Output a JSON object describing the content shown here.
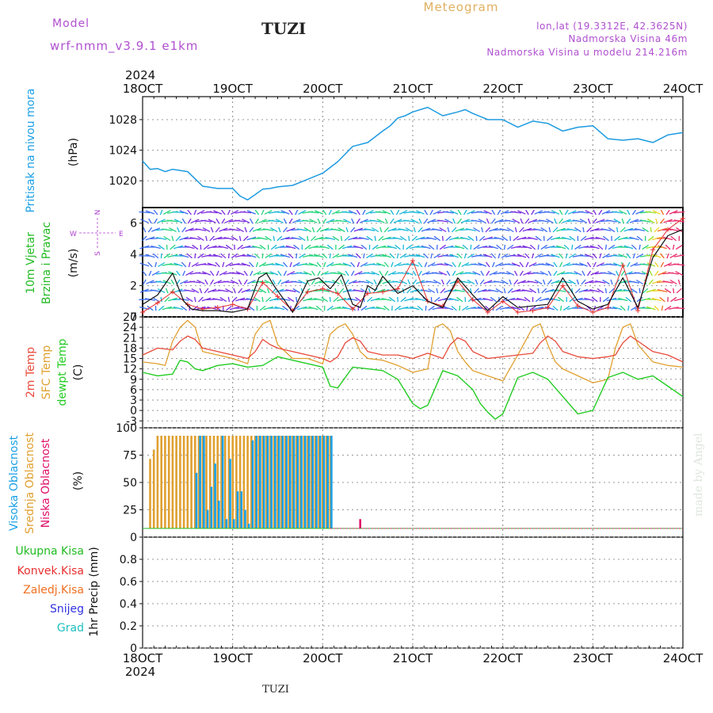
{
  "header": {
    "meteogram_label": "Meteogram",
    "model_label": "Model",
    "model_name": "wrf-nmm_v3.9.1 e1km",
    "station": "TUZI",
    "lonlat": "lon,lat (19.3312E, 42.3625N)",
    "elevation": "Nadmorska Visina 46m",
    "model_elevation": "Nadmorska Visina u modelu 214.216m",
    "year_top": "2024",
    "year_bottom": "2024",
    "footer_station": "TUZI",
    "watermark": "made by Angel"
  },
  "colors": {
    "pressure": "#1e9be0",
    "temp2m": "#e84a3a",
    "sfctemp": "#e0a030",
    "dewpt": "#22cc22",
    "cloud_high": "#1aa0e6",
    "cloud_mid": "#e0a030",
    "cloud_low": "#e0106a",
    "wind_label": "#22bb22",
    "wind_dir": "#b040d0",
    "precip_total": "#22bb22",
    "precip_conv": "#e83030",
    "precip_frozen": "#f07020",
    "precip_snow": "#3030e0",
    "precip_grad": "#20c0c0",
    "header_purple": "#b050d0",
    "header_gold": "#e0b060"
  },
  "x_ticks": [
    "18OCT",
    "19OCT",
    "20OCT",
    "21OCT",
    "22OCT",
    "23OCT",
    "24OCT"
  ],
  "panels": {
    "pressure": {
      "label_main": "Pritisak na nivou mora",
      "unit": "(hPa)",
      "yticks": [
        "1020",
        "1024",
        "1028"
      ]
    },
    "wind": {
      "label_main": "10m Vjetar",
      "label_sub": "Brzina i Pravac",
      "unit": "(m/s)",
      "compass_n": "N",
      "compass_w": "W",
      "compass_e": "E",
      "compass_s": "S",
      "yticks": [
        "0",
        "2",
        "4",
        "6"
      ]
    },
    "temp": {
      "label_a": "2m Temp",
      "label_b": "SFC Temp",
      "label_c": "dewpt Temp",
      "unit": "(C)",
      "yticks": [
        "-3",
        "0",
        "3",
        "6",
        "9",
        "12",
        "15",
        "18",
        "21",
        "24",
        "27"
      ]
    },
    "cloud": {
      "label_a": "Visoka Oblacnost",
      "label_b": "Srednja Oblacnost",
      "label_c": "Niska Oblacnost",
      "unit": "(%)",
      "yticks": [
        "0",
        "25",
        "50",
        "75",
        "100"
      ]
    },
    "precip": {
      "label_total": "Ukupna Kisa",
      "label_conv": "Konvek.Kisa",
      "label_frozen": "Zaledj.Kisa",
      "label_snow": "Snijeg",
      "label_grad": "Grad",
      "label_axis": "1hr Precip (mm)",
      "yticks": [
        "0",
        "0.2",
        "0.4",
        "0.6",
        "0.8"
      ]
    }
  },
  "chart_data": [
    {
      "type": "line",
      "name": "pressure",
      "ylim": [
        1016.5,
        1031
      ],
      "x_range_hours": [
        0,
        144
      ],
      "series": [
        {
          "name": "Pritisak na nivou mora",
          "x_hours": [
            0,
            2,
            4,
            6,
            8,
            12,
            16,
            20,
            24,
            26,
            28,
            30,
            32,
            34,
            36,
            40,
            44,
            48,
            52,
            56,
            60,
            64,
            66,
            68,
            70,
            72,
            76,
            80,
            84,
            86,
            88,
            90,
            92,
            96,
            100,
            104,
            108,
            112,
            116,
            120,
            124,
            128,
            132,
            136,
            140,
            144
          ],
          "values": [
            1022.6,
            1021.5,
            1021.6,
            1021.2,
            1021.5,
            1021.2,
            1019.3,
            1019.0,
            1019.0,
            1018.0,
            1017.5,
            1018.2,
            1018.9,
            1019.0,
            1019.2,
            1019.4,
            1020.2,
            1021.0,
            1022.5,
            1024.5,
            1025.0,
            1026.5,
            1027.2,
            1028.2,
            1028.5,
            1029.0,
            1029.6,
            1028.5,
            1029.0,
            1029.3,
            1028.8,
            1028.4,
            1028.0,
            1028.0,
            1027.0,
            1027.8,
            1027.5,
            1026.5,
            1027.0,
            1027.2,
            1025.5,
            1025.3,
            1025.5,
            1025.0,
            1026.0,
            1026.3
          ]
        }
      ]
    },
    {
      "type": "line",
      "name": "wind",
      "ylim": [
        0,
        7
      ],
      "series": [
        {
          "name": "wind speed",
          "x_hours": [
            0,
            4,
            8,
            11,
            13,
            16,
            20,
            24,
            28,
            31,
            33,
            35,
            38,
            40,
            44,
            47,
            50,
            53,
            56,
            58,
            60,
            62,
            64,
            68,
            72,
            76,
            80,
            84,
            88,
            92,
            96,
            100,
            104,
            108,
            112,
            116,
            120,
            124,
            128,
            132,
            136,
            140,
            144
          ],
          "values": [
            0.8,
            1.4,
            2.8,
            1.0,
            0.5,
            0.4,
            0.4,
            0.3,
            0.5,
            2.5,
            2.8,
            2.0,
            1.0,
            0.3,
            2.3,
            2.5,
            1.8,
            2.7,
            0.8,
            0.6,
            2.0,
            1.7,
            2.6,
            1.5,
            2.0,
            1.0,
            0.6,
            2.5,
            1.4,
            0.4,
            1.3,
            0.6,
            0.7,
            0.8,
            2.5,
            1.0,
            0.5,
            0.8,
            2.5,
            0.6,
            3.8,
            5.2,
            5.6
          ]
        },
        {
          "name": "gust",
          "x_hours": [
            0,
            4,
            8,
            12,
            16,
            20,
            24,
            28,
            32,
            36,
            40,
            44,
            48,
            52,
            56,
            60,
            64,
            68,
            72,
            76,
            80,
            84,
            88,
            92,
            96,
            100,
            104,
            108,
            112,
            116,
            120,
            124,
            128,
            132,
            136,
            140,
            144
          ],
          "values": [
            0.3,
            0.9,
            1.6,
            0.8,
            0.5,
            0.6,
            0.8,
            0.5,
            2.2,
            1.3,
            0.4,
            1.6,
            1.8,
            1.5,
            0.5,
            1.5,
            1.6,
            1.8,
            3.6,
            1.0,
            0.7,
            2.3,
            1.1,
            0.3,
            1.0,
            0.3,
            0.4,
            0.6,
            2.0,
            0.7,
            0.3,
            0.6,
            3.3,
            0.4,
            4.3,
            5.6,
            6.3
          ]
        }
      ]
    },
    {
      "type": "line",
      "name": "temperature",
      "ylim": [
        -5,
        27
      ],
      "series": [
        {
          "name": "2m Temp",
          "x_hours": [
            0,
            4,
            8,
            10,
            12,
            14,
            16,
            20,
            24,
            28,
            30,
            32,
            34,
            36,
            40,
            44,
            48,
            50,
            52,
            54,
            56,
            58,
            60,
            64,
            68,
            72,
            76,
            80,
            82,
            84,
            86,
            88,
            92,
            96,
            100,
            104,
            106,
            108,
            110,
            112,
            116,
            120,
            124,
            126,
            128,
            130,
            132,
            136,
            140,
            144
          ],
          "values": [
            16,
            18,
            17.5,
            20,
            21.5,
            20.5,
            18,
            17,
            16,
            15,
            17,
            20.5,
            19,
            18,
            17,
            16,
            15,
            14,
            15.5,
            19.5,
            21,
            20,
            17,
            16,
            16,
            15,
            16.5,
            15,
            19,
            21,
            20,
            17,
            15,
            15.5,
            16,
            16.5,
            19.5,
            21.5,
            20,
            17,
            15.5,
            15,
            15.5,
            16,
            19.5,
            21.5,
            20,
            17,
            16,
            14
          ]
        },
        {
          "name": "SFC Temp",
          "x_hours": [
            0,
            4,
            6,
            8,
            10,
            12,
            14,
            16,
            20,
            24,
            28,
            30,
            32,
            34,
            36,
            40,
            44,
            48,
            50,
            52,
            54,
            56,
            58,
            60,
            64,
            68,
            72,
            76,
            78,
            80,
            82,
            84,
            86,
            88,
            92,
            96,
            100,
            104,
            106,
            108,
            110,
            112,
            116,
            120,
            124,
            126,
            128,
            130,
            132,
            136,
            140,
            144
          ],
          "values": [
            14,
            13.5,
            13,
            20,
            24,
            26,
            24,
            17,
            16,
            15,
            13.5,
            22,
            25,
            26,
            19,
            15,
            15,
            13.5,
            22,
            24,
            25,
            22,
            17,
            15,
            14.5,
            13,
            11,
            12,
            24,
            25,
            23,
            17,
            14,
            11.5,
            10,
            8.5,
            16,
            24,
            25,
            19,
            14,
            12,
            10,
            8,
            9,
            18,
            24,
            25,
            19,
            14,
            13,
            12.5
          ]
        },
        {
          "name": "dewpt Temp",
          "x_hours": [
            0,
            4,
            8,
            10,
            12,
            14,
            16,
            20,
            24,
            28,
            32,
            36,
            40,
            44,
            48,
            50,
            52,
            56,
            60,
            64,
            68,
            72,
            74,
            76,
            80,
            84,
            88,
            90,
            92,
            94,
            96,
            100,
            104,
            108,
            112,
            116,
            120,
            124,
            128,
            132,
            136,
            140,
            144
          ],
          "values": [
            11,
            10,
            10.5,
            14.5,
            14,
            12,
            11.5,
            13,
            13.5,
            12.5,
            13,
            15.5,
            14.5,
            13.5,
            12.5,
            7,
            6.5,
            12.5,
            12,
            11.5,
            9,
            2,
            0.5,
            1.5,
            11.5,
            10,
            6,
            2,
            -0.5,
            -2.5,
            -1,
            9.5,
            11,
            9,
            4,
            -1,
            0,
            9.5,
            11,
            9,
            10,
            7,
            4
          ]
        }
      ]
    },
    {
      "type": "bar",
      "name": "cloud",
      "ylim": [
        0,
        100
      ],
      "series": [
        {
          "name": "Visoka Oblacnost",
          "x_hours": [
            14,
            15,
            16,
            17,
            18,
            19,
            20,
            21,
            22,
            23,
            24,
            25,
            26,
            27,
            28,
            29,
            30,
            31,
            32,
            33,
            34,
            35,
            36,
            37,
            38,
            39,
            40,
            41,
            42,
            43,
            44,
            45,
            46,
            47,
            48,
            49,
            50
          ],
          "values": [
            60,
            100,
            100,
            20,
            45,
            70,
            30,
            100,
            10,
            75,
            10,
            40,
            40,
            20,
            5,
            95,
            100,
            100,
            100,
            100,
            100,
            100,
            100,
            100,
            100,
            100,
            100,
            100,
            100,
            100,
            100,
            100,
            100,
            100,
            100,
            100,
            100
          ]
        },
        {
          "name": "Srednja Oblacnost",
          "x_hours": [
            2,
            3,
            4,
            5,
            6,
            7,
            8,
            9,
            10,
            11,
            12,
            13,
            14,
            15,
            16,
            17,
            18,
            19,
            20,
            21,
            22,
            23,
            24,
            25,
            26,
            27,
            28,
            29,
            30,
            31,
            32,
            33,
            34,
            35,
            36,
            37,
            38,
            39,
            40,
            41,
            42,
            43,
            44,
            45,
            46,
            47,
            48,
            49,
            50
          ],
          "values": [
            75,
            85,
            100,
            100,
            100,
            100,
            100,
            100,
            100,
            100,
            100,
            100,
            100,
            100,
            100,
            100,
            100,
            100,
            100,
            100,
            100,
            100,
            100,
            100,
            100,
            100,
            100,
            100,
            100,
            100,
            100,
            100,
            100,
            100,
            100,
            100,
            100,
            100,
            100,
            100,
            100,
            100,
            100,
            100,
            100,
            100,
            100,
            100,
            100
          ]
        },
        {
          "name": "Niska Oblacnost",
          "x_hours": [
            58
          ],
          "values": [
            10
          ]
        }
      ]
    },
    {
      "type": "bar",
      "name": "precip",
      "ylim": [
        0,
        1
      ],
      "series": [
        {
          "name": "Ukupna Kisa",
          "x_hours": [],
          "values": []
        }
      ]
    }
  ]
}
